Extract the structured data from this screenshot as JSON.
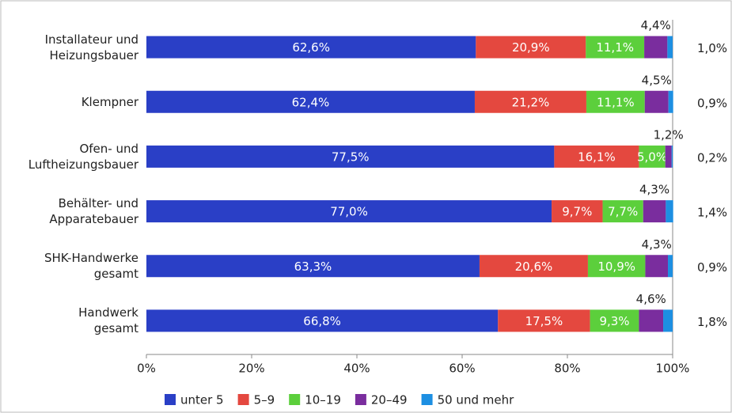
{
  "chart_data": {
    "type": "stacked_bar_horizontal",
    "categories": [
      "Installateur und\nHeizungsbauer",
      "Klempner",
      "Ofen- und\nLuftheizungsbauer",
      "Behälter- und\nApparatebauer",
      "SHK-Handwerke\ngesamt",
      "Handwerk\ngesamt"
    ],
    "series": [
      {
        "name": "unter 5",
        "color": "#2a3fc6",
        "values": [
          62.6,
          62.4,
          77.5,
          77.0,
          63.3,
          66.8
        ],
        "value_labels": [
          "62,6%",
          "62,4%",
          "77,5%",
          "77,0%",
          "63,3%",
          "66,8%"
        ]
      },
      {
        "name": "5–9",
        "color": "#e4483f",
        "values": [
          20.9,
          21.2,
          16.1,
          9.7,
          20.6,
          17.5
        ],
        "value_labels": [
          "20,9%",
          "21,2%",
          "16,1%",
          "9,7%",
          "20,6%",
          "17,5%"
        ]
      },
      {
        "name": "10–19",
        "color": "#5ccf3c",
        "values": [
          11.1,
          11.1,
          5.0,
          7.7,
          10.9,
          9.3
        ],
        "value_labels": [
          "11,1%",
          "11,1%",
          "5,0%",
          "7,7%",
          "10,9%",
          "9,3%"
        ]
      },
      {
        "name": "20–49",
        "color": "#7a2d9e",
        "values": [
          4.4,
          4.5,
          1.2,
          4.3,
          4.3,
          4.6
        ],
        "value_labels": [
          "4,4%",
          "4,5%",
          "1,2%",
          "4,3%",
          "4,3%",
          "4,6%"
        ]
      },
      {
        "name": "50 und mehr",
        "color": "#1d8fe2",
        "values": [
          1.0,
          0.9,
          0.2,
          1.4,
          0.9,
          1.8
        ],
        "value_labels": [
          "1,0%",
          "0,9%",
          "0,2%",
          "1,4%",
          "0,9%",
          "1,8%"
        ]
      }
    ],
    "xlim": [
      0,
      100
    ],
    "xticks": [
      {
        "value": 0,
        "label": "0%"
      },
      {
        "value": 20,
        "label": "20%"
      },
      {
        "value": 40,
        "label": "40%"
      },
      {
        "value": 60,
        "label": "60%"
      },
      {
        "value": 80,
        "label": "80%"
      },
      {
        "value": 100,
        "label": "100%"
      }
    ],
    "grid": false,
    "legend": "bottom"
  }
}
